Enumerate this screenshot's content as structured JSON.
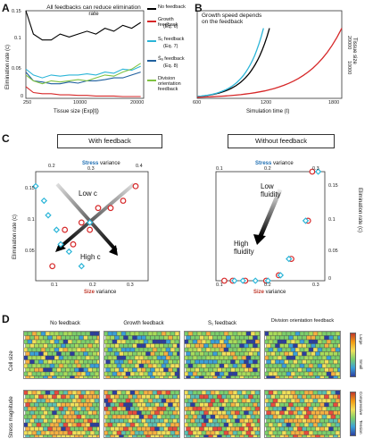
{
  "panels": {
    "a": "A",
    "b": "B",
    "c": "C",
    "d": "D"
  },
  "panelA": {
    "annotation": "All feedbacks can reduce elimination rate",
    "ylabel": "Elimination rate (c)",
    "xlabel": "Tissue size (Exp[t])",
    "yticks": [
      "0.15",
      "0.1",
      "0.05",
      "0"
    ],
    "xticks": [
      "250",
      "10000",
      "20000"
    ],
    "legend": [
      {
        "label": "No feedback",
        "sub": "",
        "color": "#000000"
      },
      {
        "label": "Growth feedback",
        "sub": "(Eq. 6)",
        "color": "#d62728"
      },
      {
        "label": "S₁ feedback",
        "sub": "(Eq. 7)",
        "color": "#2bb5d8"
      },
      {
        "label": "S̄ₐ feedback",
        "sub": "(Eq. 8)",
        "color": "#1f5f9e"
      },
      {
        "label": "Division orientation feedback",
        "sub": "",
        "color": "#7fc241"
      }
    ]
  },
  "panelB": {
    "annotation": "Growth speed depends on the feedback",
    "xlabel": "Simulation time (t)",
    "ylabel": "Tissue size",
    "xticks": [
      "600",
      "1200",
      "1800"
    ],
    "yticks": [
      "20000",
      "10000"
    ]
  },
  "panelC": {
    "left_title": "With feedback",
    "right_title": "Without feedback",
    "top_axis_label_bold": "Stress",
    "top_axis_label_rest": " variance",
    "bottom_axis_label_bold": "Size",
    "bottom_axis_label_rest": " variance",
    "left_ylabel": "Elimination rate (c)",
    "right_ylabel": "Elimination rate (c)",
    "left_top_ticks": [
      "0.2",
      "0.3",
      "0.4"
    ],
    "left_bottom_ticks": [
      "0.1",
      "0.2",
      "0.3"
    ],
    "left_yticks": [
      "0.15",
      "0.1",
      "0.05"
    ],
    "right_top_ticks": [
      "0.1",
      "0.2",
      "0.3"
    ],
    "right_bottom_ticks": [
      "0.1",
      "0.2",
      "0.3"
    ],
    "right_yticks": [
      "0.15",
      "0.1",
      "0.05",
      "0"
    ],
    "low_c": "Low c",
    "high_c": "High c",
    "low_fluidity": "Low fluidity",
    "high_fluidity": "High fluidity"
  },
  "panelD": {
    "columns": [
      "No feedback",
      "Growth feedback",
      "S₁ feedback",
      "Division orientation feedback"
    ],
    "rows": [
      "Cell size",
      "Stress magnitude"
    ],
    "cbar1": [
      "Large",
      "Small"
    ],
    "cbar2": [
      "Compressive",
      "Tension"
    ]
  },
  "chart_data": [
    {
      "type": "line",
      "title": "",
      "xlabel": "Tissue size (Exp[t])",
      "ylabel": "Elimination rate (c)",
      "xlim": [
        250,
        20000
      ],
      "ylim": [
        0,
        0.15
      ],
      "series": [
        {
          "name": "No feedback",
          "x": [
            250,
            1500,
            3000,
            4500,
            6000,
            7500,
            9000,
            10500,
            12000,
            13500,
            15000,
            16500,
            18000,
            19500
          ],
          "values": [
            0.15,
            0.11,
            0.1,
            0.1,
            0.11,
            0.105,
            0.11,
            0.115,
            0.11,
            0.12,
            0.115,
            0.125,
            0.12,
            0.13
          ]
        },
        {
          "name": "Growth feedback",
          "x": [
            250,
            1500,
            3000,
            4500,
            6000,
            7500,
            9000,
            10500,
            12000,
            13500,
            15000,
            16500,
            18000,
            19500
          ],
          "values": [
            0.02,
            0.01,
            0.008,
            0.008,
            0.006,
            0.006,
            0.005,
            0.005,
            0.004,
            0.004,
            0.004,
            0.003,
            0.003,
            0.003
          ]
        },
        {
          "name": "S₁ feedback",
          "x": [
            250,
            1500,
            3000,
            4500,
            6000,
            7500,
            9000,
            10500,
            12000,
            13500,
            15000,
            16500,
            18000,
            19500
          ],
          "values": [
            0.05,
            0.04,
            0.035,
            0.04,
            0.038,
            0.04,
            0.04,
            0.042,
            0.04,
            0.045,
            0.043,
            0.05,
            0.048,
            0.055
          ]
        },
        {
          "name": "S̄ₐ feedback",
          "x": [
            250,
            1500,
            3000,
            4500,
            6000,
            7500,
            9000,
            10500,
            12000,
            13500,
            15000,
            16500,
            18000,
            19500
          ],
          "values": [
            0.045,
            0.03,
            0.028,
            0.025,
            0.025,
            0.028,
            0.026,
            0.03,
            0.03,
            0.032,
            0.035,
            0.035,
            0.04,
            0.045
          ]
        },
        {
          "name": "Division orientation feedback",
          "x": [
            250,
            1500,
            3000,
            4500,
            6000,
            7500,
            9000,
            10500,
            12000,
            13500,
            15000,
            16500,
            18000,
            19500
          ],
          "values": [
            0.04,
            0.03,
            0.025,
            0.03,
            0.028,
            0.03,
            0.032,
            0.03,
            0.035,
            0.04,
            0.038,
            0.045,
            0.05,
            0.06
          ]
        }
      ]
    },
    {
      "type": "line",
      "title": "",
      "xlabel": "Simulation time (t)",
      "ylabel": "Tissue size",
      "xlim": [
        600,
        1800
      ],
      "ylim": [
        0,
        25000
      ],
      "series": [
        {
          "name": "No feedback",
          "x": [
            600,
            800,
            1000,
            1200
          ],
          "values": [
            500,
            2500,
            8000,
            20000
          ]
        },
        {
          "name": "S₁ feedback",
          "x": [
            600,
            800,
            1000,
            1150
          ],
          "values": [
            500,
            3000,
            9000,
            20000
          ]
        },
        {
          "name": "Growth feedback",
          "x": [
            600,
            900,
            1200,
            1500,
            1800
          ],
          "values": [
            300,
            1500,
            4000,
            9000,
            20000
          ]
        }
      ]
    },
    {
      "type": "scatter",
      "title": "With feedback",
      "series": [
        {
          "name": "Size",
          "x": [
            0.14,
            0.17,
            0.19,
            0.21,
            0.23,
            0.25,
            0.28,
            0.31,
            0.34
          ],
          "values": [
            0.04,
            0.09,
            0.07,
            0.1,
            0.09,
            0.12,
            0.12,
            0.13,
            0.15
          ]
        },
        {
          "name": "Stress",
          "x": [
            0.22,
            0.24,
            0.25,
            0.27,
            0.28,
            0.3,
            0.33,
            0.35
          ],
          "values": [
            0.15,
            0.13,
            0.11,
            0.09,
            0.07,
            0.06,
            0.04,
            0.1
          ]
        }
      ]
    },
    {
      "type": "scatter",
      "title": "Without feedback",
      "series": [
        {
          "name": "Size",
          "x": [
            0.12,
            0.14,
            0.17,
            0.22,
            0.25,
            0.28,
            0.32,
            0.33
          ],
          "values": [
            0,
            0,
            0,
            0,
            0.01,
            0.04,
            0.11,
            0.2
          ]
        },
        {
          "name": "Stress",
          "x": [
            0.14,
            0.16,
            0.19,
            0.22,
            0.25,
            0.27,
            0.31,
            0.34
          ],
          "values": [
            0,
            0,
            0,
            0,
            0.01,
            0.04,
            0.11,
            0.2
          ]
        }
      ]
    }
  ]
}
